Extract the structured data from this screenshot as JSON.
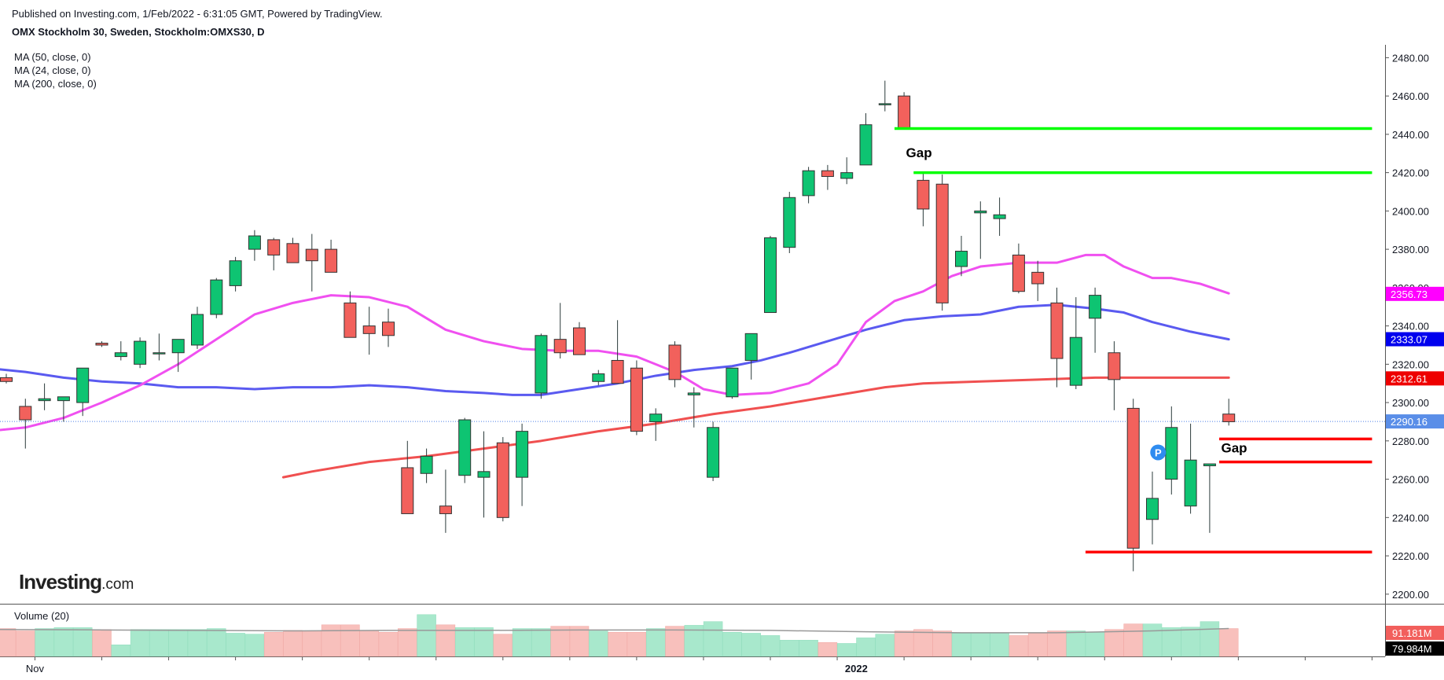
{
  "header": {
    "published": "Published on Investing.com, 1/Feb/2022 - 6:31:05 GMT, Powered by TradingView.",
    "symbol": "OMX Stockholm 30, Sweden, Stockholm:OMXS30, D"
  },
  "indicators": [
    "MA (50, close, 0)",
    "MA (24, close, 0)",
    "MA (200, close, 0)"
  ],
  "logo": {
    "name": "Investing",
    "suffix": ".com"
  },
  "volume_label": "Volume (20)",
  "colors": {
    "up": "#0ec472",
    "down": "#f2615c",
    "ma50": "#5a5af0",
    "ma24": "#f050f0",
    "ma200": "#f05050",
    "gap_up": "#00ff00",
    "gap_down": "#ff0000",
    "vol_up": "#a8e8cc",
    "vol_down": "#f8c0bc"
  },
  "chart_data": {
    "type": "candlestick",
    "ylim": [
      2195,
      2490
    ],
    "yticks": [
      2200,
      2220,
      2240,
      2260,
      2280,
      2300,
      2320,
      2340,
      2360,
      2380,
      2400,
      2420,
      2440,
      2460,
      2480
    ],
    "xticks": [
      {
        "label": "Nov",
        "index": 1.5
      },
      {
        "label": "2022",
        "index": 44.5
      }
    ],
    "candles": [
      [
        2313,
        2315,
        2310,
        2311
      ],
      [
        2298,
        2302,
        2276,
        2291
      ],
      [
        2301,
        2310,
        2296,
        2302
      ],
      [
        2301,
        2303,
        2290,
        2303
      ],
      [
        2300,
        2318,
        2293,
        2318
      ],
      [
        2331,
        2332,
        2329,
        2330
      ],
      [
        2324,
        2332,
        2322,
        2326
      ],
      [
        2320,
        2334,
        2318,
        2332
      ],
      [
        2326,
        2336,
        2322,
        2326
      ],
      [
        2326,
        2333,
        2316,
        2333
      ],
      [
        2330,
        2350,
        2328,
        2346
      ],
      [
        2346,
        2365,
        2344,
        2364
      ],
      [
        2361,
        2376,
        2358,
        2374
      ],
      [
        2380,
        2390,
        2374,
        2387
      ],
      [
        2385,
        2386,
        2369,
        2377
      ],
      [
        2383,
        2386,
        2374,
        2373
      ],
      [
        2380,
        2388,
        2358,
        2374
      ],
      [
        2380,
        2385,
        2368,
        2368
      ],
      [
        2352,
        2358,
        2334,
        2334
      ],
      [
        2340,
        2350,
        2325,
        2336
      ],
      [
        2342,
        2349,
        2329,
        2335
      ],
      [
        2266,
        2280,
        2242,
        2242
      ],
      [
        2263,
        2276,
        2258,
        2272
      ],
      [
        2246,
        2265,
        2232,
        2242
      ],
      [
        2262,
        2292,
        2258,
        2291
      ],
      [
        2261,
        2285,
        2240,
        2264
      ],
      [
        2279,
        2282,
        2238,
        2240
      ],
      [
        2261,
        2289,
        2246,
        2285
      ],
      [
        2305,
        2336,
        2302,
        2335
      ],
      [
        2333,
        2352,
        2323,
        2326
      ],
      [
        2339,
        2342,
        2325,
        2325
      ],
      [
        2311,
        2317,
        2309,
        2315
      ],
      [
        2322,
        2343,
        2310,
        2310
      ],
      [
        2318,
        2322,
        2283,
        2285
      ],
      [
        2290,
        2297,
        2280,
        2294
      ],
      [
        2330,
        2332,
        2308,
        2312
      ],
      [
        2304,
        2308,
        2287,
        2305
      ],
      [
        2261,
        2290,
        2259,
        2287
      ],
      [
        2303,
        2318,
        2302,
        2318
      ],
      [
        2322,
        2336,
        2312,
        2336
      ],
      [
        2347,
        2387,
        2347,
        2386
      ],
      [
        2381,
        2410,
        2378,
        2407
      ],
      [
        2408,
        2423,
        2404,
        2421
      ],
      [
        2421,
        2424,
        2411,
        2418
      ],
      [
        2417,
        2428,
        2414,
        2420
      ],
      [
        2424,
        2451,
        2424,
        2445
      ],
      [
        2456,
        2468,
        2452,
        2456
      ],
      [
        2460,
        2462,
        2444,
        2443
      ],
      [
        2416,
        2420,
        2392,
        2401
      ],
      [
        2414,
        2419,
        2348,
        2352
      ],
      [
        2371,
        2387,
        2366,
        2379
      ],
      [
        2399,
        2405,
        2375,
        2400
      ],
      [
        2396,
        2407,
        2387,
        2398
      ],
      [
        2377,
        2383,
        2357,
        2358
      ],
      [
        2368,
        2374,
        2353,
        2362
      ],
      [
        2352,
        2360,
        2308,
        2323
      ],
      [
        2309,
        2355,
        2307,
        2334
      ],
      [
        2344,
        2360,
        2326,
        2356
      ],
      [
        2326,
        2332,
        2296,
        2312
      ],
      [
        2297,
        2302,
        2212,
        2224
      ],
      [
        2239,
        2264,
        2226,
        2250
      ],
      [
        2260,
        2298,
        2252,
        2287
      ],
      [
        2246,
        2289,
        2242,
        2270
      ],
      [
        2267,
        2268,
        2232,
        2268
      ],
      [
        2294,
        2302,
        2288,
        2290
      ]
    ],
    "ma24": [
      [
        -1,
        2285
      ],
      [
        1,
        2287
      ],
      [
        3,
        2292
      ],
      [
        5,
        2300
      ],
      [
        7,
        2309
      ],
      [
        9,
        2320
      ],
      [
        11,
        2333
      ],
      [
        13,
        2346
      ],
      [
        15,
        2352
      ],
      [
        17,
        2356
      ],
      [
        19,
        2355
      ],
      [
        21,
        2350
      ],
      [
        23,
        2338
      ],
      [
        25,
        2332
      ],
      [
        27,
        2328
      ],
      [
        29,
        2327
      ],
      [
        31,
        2327
      ],
      [
        33,
        2324
      ],
      [
        35,
        2316
      ],
      [
        36.5,
        2307
      ],
      [
        38,
        2304
      ],
      [
        40,
        2305
      ],
      [
        42,
        2310
      ],
      [
        43.5,
        2320
      ],
      [
        45,
        2342
      ],
      [
        46.5,
        2353
      ],
      [
        48,
        2358
      ],
      [
        49.5,
        2366
      ],
      [
        51,
        2371
      ],
      [
        53,
        2373
      ],
      [
        55,
        2373
      ],
      [
        56.5,
        2377
      ],
      [
        57.5,
        2377
      ],
      [
        58.5,
        2371
      ],
      [
        60,
        2365
      ],
      [
        61,
        2365
      ],
      [
        62.5,
        2362
      ],
      [
        64,
        2357
      ]
    ],
    "ma50": [
      [
        -1,
        2318
      ],
      [
        1,
        2316
      ],
      [
        3,
        2313
      ],
      [
        5,
        2311
      ],
      [
        7,
        2310
      ],
      [
        9,
        2308
      ],
      [
        11,
        2308
      ],
      [
        13,
        2307
      ],
      [
        15,
        2308
      ],
      [
        17,
        2308
      ],
      [
        19,
        2309
      ],
      [
        21,
        2308
      ],
      [
        23,
        2306
      ],
      [
        25,
        2305
      ],
      [
        26.5,
        2304
      ],
      [
        28,
        2304
      ],
      [
        30,
        2307
      ],
      [
        32,
        2310
      ],
      [
        34,
        2314
      ],
      [
        36,
        2317
      ],
      [
        38,
        2319
      ],
      [
        39.5,
        2322
      ],
      [
        41,
        2326
      ],
      [
        43,
        2332
      ],
      [
        45,
        2338
      ],
      [
        47,
        2343
      ],
      [
        49,
        2345
      ],
      [
        51,
        2346
      ],
      [
        53,
        2350
      ],
      [
        55,
        2351
      ],
      [
        57,
        2349
      ],
      [
        58.5,
        2347
      ],
      [
        60,
        2342
      ],
      [
        62,
        2337
      ],
      [
        64,
        2333
      ]
    ],
    "ma200": [
      [
        14.5,
        2261
      ],
      [
        16,
        2264
      ],
      [
        19,
        2269
      ],
      [
        22,
        2272
      ],
      [
        25,
        2276
      ],
      [
        28,
        2280
      ],
      [
        31,
        2285
      ],
      [
        34,
        2289
      ],
      [
        37,
        2294
      ],
      [
        40,
        2298
      ],
      [
        43,
        2303
      ],
      [
        46,
        2308
      ],
      [
        48,
        2310
      ],
      [
        51,
        2311
      ],
      [
        54,
        2312
      ],
      [
        57,
        2313
      ],
      [
        60,
        2313
      ],
      [
        63,
        2313
      ],
      [
        64,
        2313
      ]
    ],
    "volume": {
      "ylim": [
        0,
        110
      ],
      "bars": [
        60,
        55,
        60,
        62,
        62,
        58,
        25,
        58,
        58,
        58,
        58,
        60,
        50,
        48,
        52,
        56,
        55,
        68,
        68,
        56,
        52,
        60,
        90,
        68,
        62,
        62,
        48,
        60,
        60,
        65,
        65,
        55,
        52,
        52,
        60,
        65,
        67,
        75,
        52,
        50,
        45,
        35,
        35,
        30,
        28,
        40,
        48,
        55,
        58,
        55,
        50,
        50,
        50,
        45,
        50,
        55,
        55,
        53,
        58,
        70,
        70,
        62,
        63,
        75,
        60
      ],
      "ma20": [
        [
          -1,
          58
        ],
        [
          5,
          57
        ],
        [
          10,
          56
        ],
        [
          15,
          55
        ],
        [
          20,
          56
        ],
        [
          25,
          56
        ],
        [
          30,
          57
        ],
        [
          35,
          57
        ],
        [
          40,
          56
        ],
        [
          45,
          53
        ],
        [
          50,
          51
        ],
        [
          55,
          51
        ],
        [
          60,
          55
        ],
        [
          64,
          60
        ]
      ]
    },
    "price_labels": [
      {
        "label": "2356.73",
        "value": 2356.73,
        "color": "#ff00ff"
      },
      {
        "label": "2333.07",
        "value": 2333.07,
        "color": "#0000ee"
      },
      {
        "label": "2312.61",
        "value": 2312.61,
        "color": "#ee0000"
      },
      {
        "label": "2290.16",
        "value": 2290.16,
        "color": "#5a8ee8"
      }
    ],
    "volume_labels": [
      {
        "label": "91.181M",
        "color": "#f25f5c"
      },
      {
        "label": "79.984M",
        "color": "#000000"
      }
    ],
    "gaps": [
      {
        "color": "gap_up",
        "from": 46.5,
        "to": 71.5,
        "value": 2443
      },
      {
        "color": "gap_up",
        "from": 47.5,
        "to": 71.5,
        "value": 2420
      },
      {
        "color": "gap_down",
        "from": 63.5,
        "to": 71.5,
        "value": 2281
      },
      {
        "color": "gap_down",
        "from": 63.5,
        "to": 71.5,
        "value": 2269
      },
      {
        "color": "gap_down",
        "from": 56.5,
        "to": 71.5,
        "value": 2222
      }
    ],
    "annotations": [
      {
        "text": "Gap",
        "index": 47.1,
        "value": 2428
      },
      {
        "text": "Gap",
        "index": 63.6,
        "value": 2274
      }
    ],
    "marker": {
      "text": "P",
      "index": 60.3,
      "value": 2274
    }
  }
}
